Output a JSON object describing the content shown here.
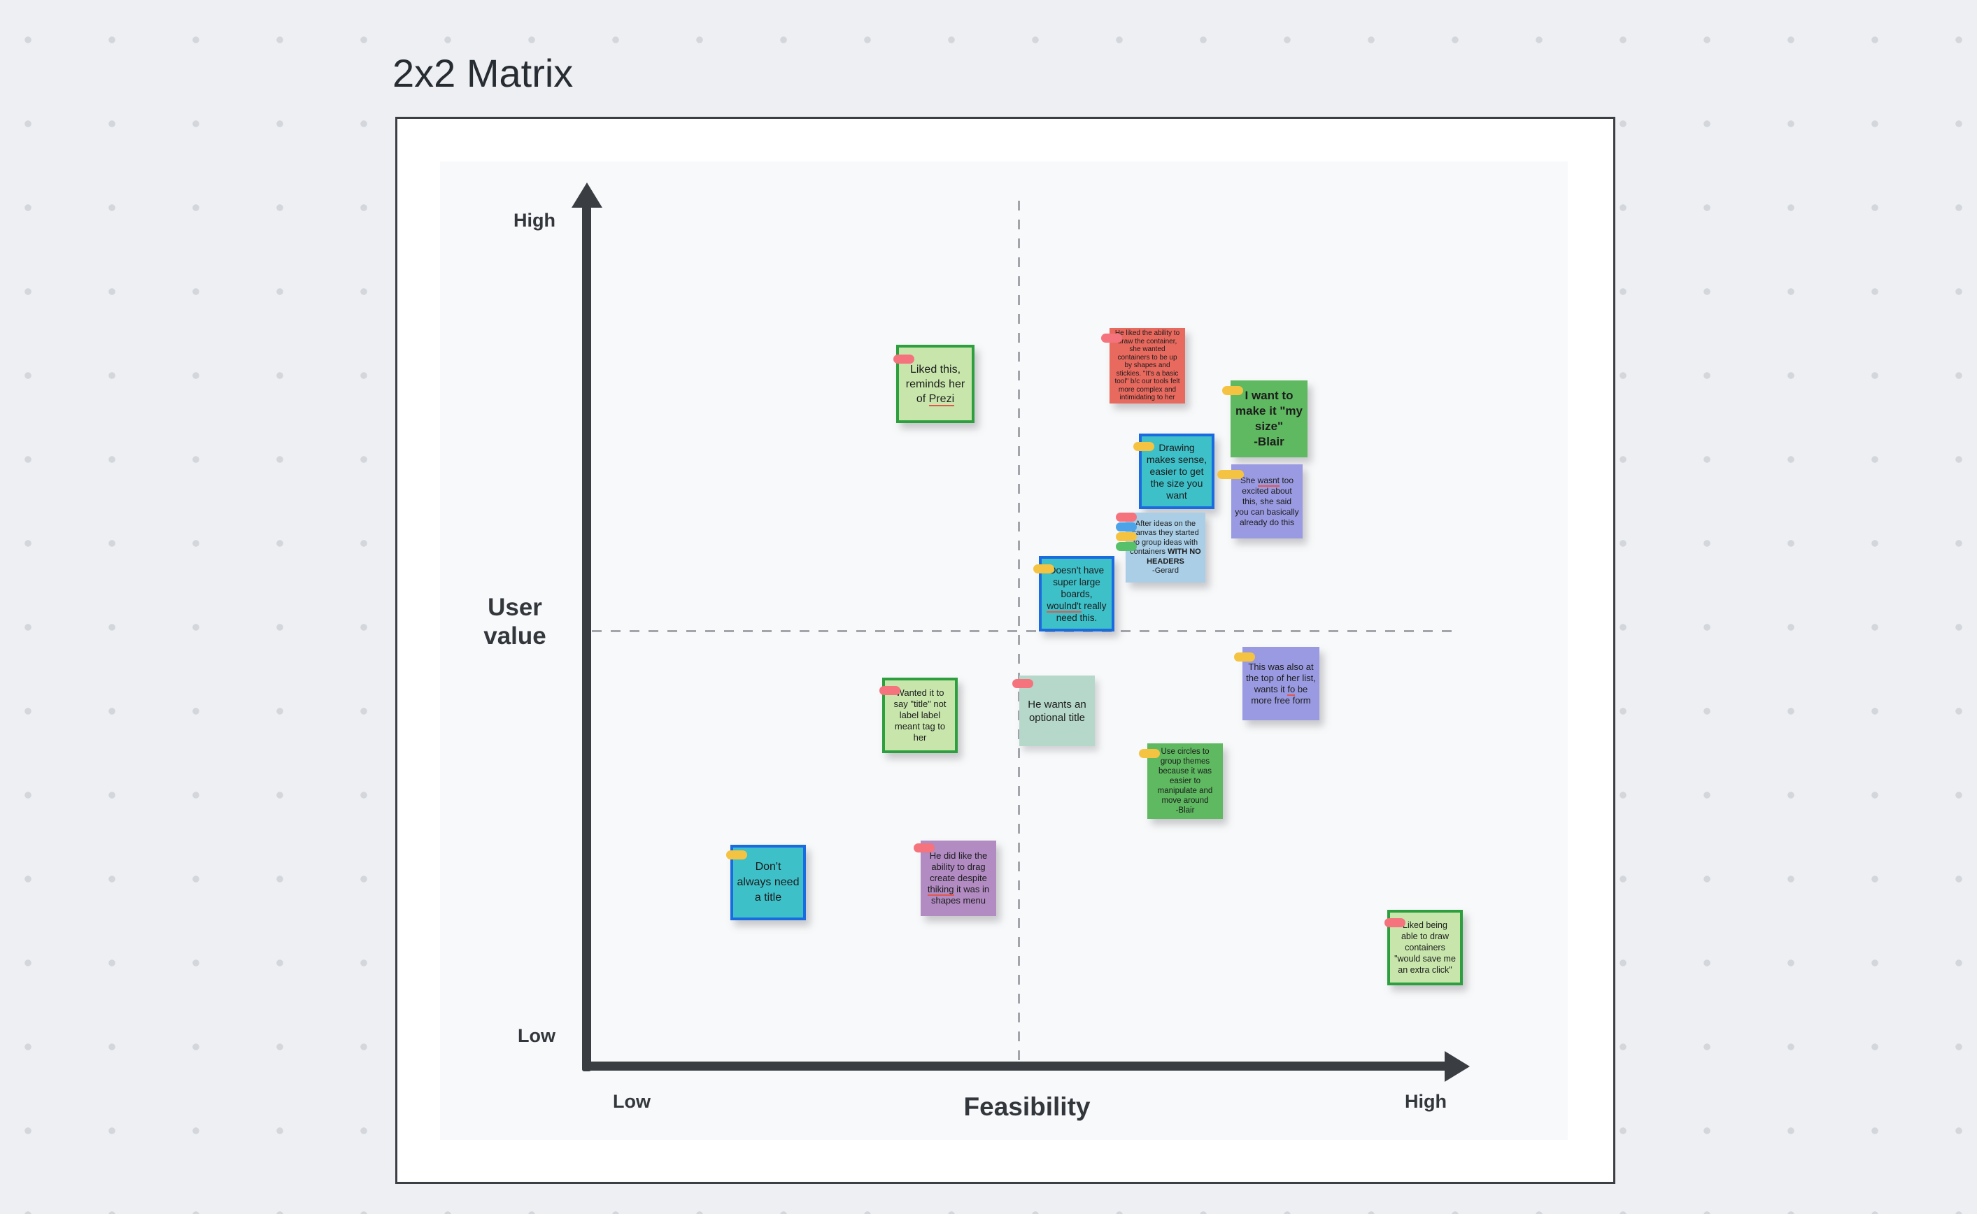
{
  "page": {
    "title": "2x2 Matrix"
  },
  "matrix": {
    "y_axis": {
      "label": "User value",
      "top_label": "High",
      "bottom_label": "Low"
    },
    "x_axis": {
      "label": "Feasibility",
      "left_label": "Low",
      "right_label": "High"
    }
  },
  "colors": {
    "background": "#edeff2",
    "axis": "#3a3d42",
    "note_red": "#e8695e",
    "note_green": "#5fb961",
    "note_light_green": "#c8e6ac",
    "note_light_green_border": "#2d9f3f",
    "note_teal": "#3ec0c9",
    "note_teal_border": "#1a6be0",
    "note_periwinkle": "#9a9ae2",
    "note_light_blue": "#a9cee6",
    "note_sage": "#b6d8ca",
    "note_mauve": "#b18bc2",
    "tag_red": "#f4737d",
    "tag_yellow": "#f5c342",
    "tag_blue": "#4da3e8",
    "tag_green": "#56c16a"
  },
  "notes": [
    {
      "text": "He liked the ability to draw the container, she wanted containers to be up by shapes and stickies. \"It's a basic tool\" b/c our tools felt more complex and intimidating to her",
      "color": "red",
      "tags": [
        "red"
      ],
      "underline": []
    },
    {
      "text": "Liked this, reminds her of Prezi",
      "color": "light_green",
      "tags": [
        "red"
      ],
      "underline": [
        "Prezi"
      ]
    },
    {
      "text": "I want to make it \"my size\"\n-Blair",
      "color": "green",
      "tags": [
        "yellow"
      ],
      "underline": []
    },
    {
      "text": "Drawing makes sense, easier to get the size you want",
      "color": "teal",
      "tags": [
        "yellow"
      ],
      "underline": []
    },
    {
      "text": "She wasnt too excited about this, she said you can basically already do this",
      "color": "periwinkle",
      "tags": [
        "yellow"
      ],
      "underline": [
        "wasnt"
      ]
    },
    {
      "text": "After ideas on the canvas they started to group ideas with containers WITH NO HEADERS\n-Gerard",
      "color": "light_blue",
      "tags": [
        "red",
        "blue",
        "yellow",
        "green"
      ],
      "underline": [],
      "bold": [
        "WITH NO HEADERS"
      ]
    },
    {
      "text": "Doesn't have super large boards, woulnd't really need this.",
      "color": "teal",
      "tags": [
        "yellow"
      ],
      "underline": [
        "woulnd't"
      ]
    },
    {
      "text": "This was also at the top of her list, wants it fo be more free form",
      "color": "periwinkle",
      "tags": [
        "yellow"
      ],
      "underline": [
        "fo"
      ]
    },
    {
      "text": "Wanted it to say \"title\" not label label meant tag to her",
      "color": "light_green",
      "tags": [
        "red"
      ],
      "underline": []
    },
    {
      "text": "He wants an optional title",
      "color": "sage",
      "tags": [
        "red"
      ],
      "underline": []
    },
    {
      "text": "Use circles to group themes because it was easier to manipulate and move around\n-Blair",
      "color": "green",
      "tags": [
        "yellow"
      ],
      "underline": []
    },
    {
      "text": "Don't always need a title",
      "color": "teal",
      "tags": [
        "yellow"
      ],
      "underline": []
    },
    {
      "text": "He did like the ability to drag create despite thiking it was in shapes menu",
      "color": "mauve",
      "tags": [
        "red"
      ],
      "underline": [
        "thiking"
      ]
    },
    {
      "text": "Liked being able to draw containers \"would save me an extra click\"",
      "color": "light_green",
      "tags": [
        "red"
      ],
      "underline": []
    }
  ]
}
